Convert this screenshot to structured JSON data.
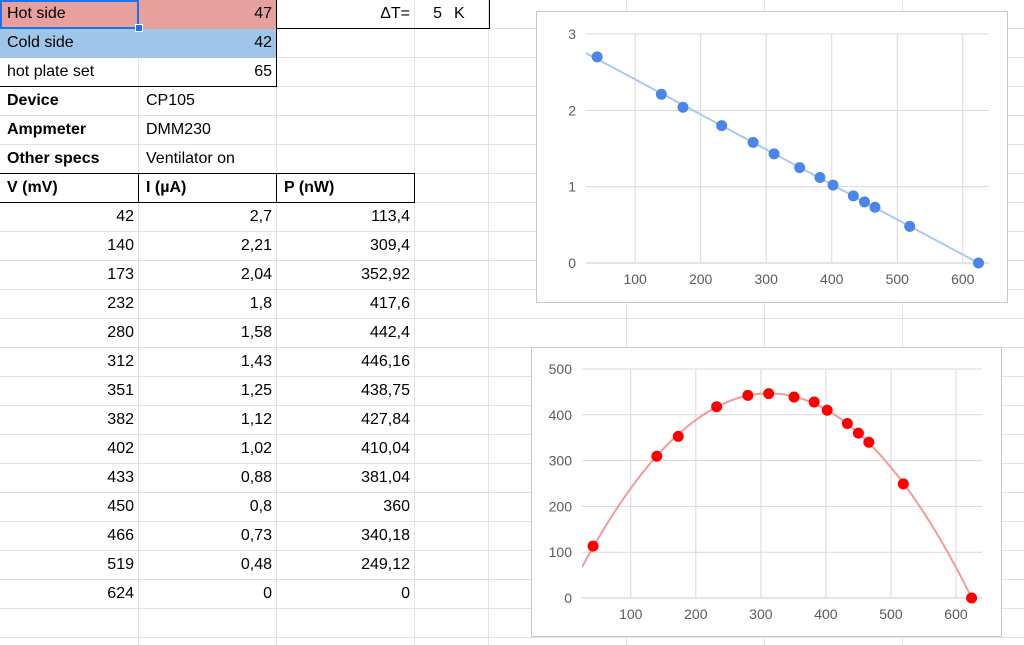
{
  "params": {
    "hot_side": {
      "label": "Hot side",
      "value": "47"
    },
    "cold_side": {
      "label": "Cold side",
      "value": "42"
    },
    "hot_plate": {
      "label": "hot plate set",
      "value": "65"
    },
    "delta_t": {
      "label": "ΔT=",
      "value": "5",
      "unit": "K"
    },
    "device": {
      "label": "Device",
      "value": "CP105"
    },
    "ampmeter": {
      "label": "Ampmeter",
      "value": "DMM230"
    },
    "other_specs": {
      "label": "Other specs",
      "value": "Ventilator on"
    }
  },
  "table": {
    "headers": [
      "V (mV)",
      "I (µA)",
      "P (nW)"
    ],
    "rows": [
      [
        "42",
        "2,7",
        "113,4"
      ],
      [
        "140",
        "2,21",
        "309,4"
      ],
      [
        "173",
        "2,04",
        "352,92"
      ],
      [
        "232",
        "1,8",
        "417,6"
      ],
      [
        "280",
        "1,58",
        "442,4"
      ],
      [
        "312",
        "1,43",
        "446,16"
      ],
      [
        "351",
        "1,25",
        "438,75"
      ],
      [
        "382",
        "1,12",
        "427,84"
      ],
      [
        "402",
        "1,02",
        "410,04"
      ],
      [
        "433",
        "0,88",
        "381,04"
      ],
      [
        "450",
        "0,8",
        "360"
      ],
      [
        "466",
        "0,73",
        "340,18"
      ],
      [
        "519",
        "0,48",
        "249,12"
      ],
      [
        "624",
        "0",
        "0"
      ]
    ]
  },
  "colors": {
    "hot_fill": "#e6a09e",
    "cold_fill": "#9fc5e8",
    "selection": "#1a73e8",
    "current_series": "#4a86e8",
    "current_trend": "#a9c8f2",
    "power_series": "#ff0000",
    "power_trend": "#f49a9a"
  },
  "chart_data": [
    {
      "type": "scatter",
      "x": [
        42,
        140,
        173,
        232,
        280,
        312,
        351,
        382,
        402,
        433,
        450,
        466,
        519,
        624
      ],
      "y": [
        2.7,
        2.21,
        2.04,
        1.8,
        1.58,
        1.43,
        1.25,
        1.12,
        1.02,
        0.88,
        0.8,
        0.73,
        0.48,
        0
      ],
      "trendline": "linear",
      "xticks": [
        "100",
        "200",
        "300",
        "400",
        "500",
        "600"
      ],
      "yticks": [
        "0",
        "1",
        "2",
        "3"
      ],
      "xlim": [
        25,
        640
      ],
      "ylim": [
        0,
        3
      ],
      "grid": true
    },
    {
      "type": "scatter",
      "x": [
        42,
        140,
        173,
        232,
        280,
        312,
        351,
        382,
        402,
        433,
        450,
        466,
        519,
        624
      ],
      "y": [
        113.4,
        309.4,
        352.92,
        417.6,
        442.4,
        446.16,
        438.75,
        427.84,
        410.04,
        381.04,
        360,
        340.18,
        249.12,
        0
      ],
      "trendline": "polynomial",
      "xticks": [
        "100",
        "200",
        "300",
        "400",
        "500",
        "600"
      ],
      "yticks": [
        "0",
        "100",
        "200",
        "300",
        "400",
        "500"
      ],
      "xlim": [
        25,
        640
      ],
      "ylim": [
        0,
        500
      ],
      "grid": true
    }
  ]
}
